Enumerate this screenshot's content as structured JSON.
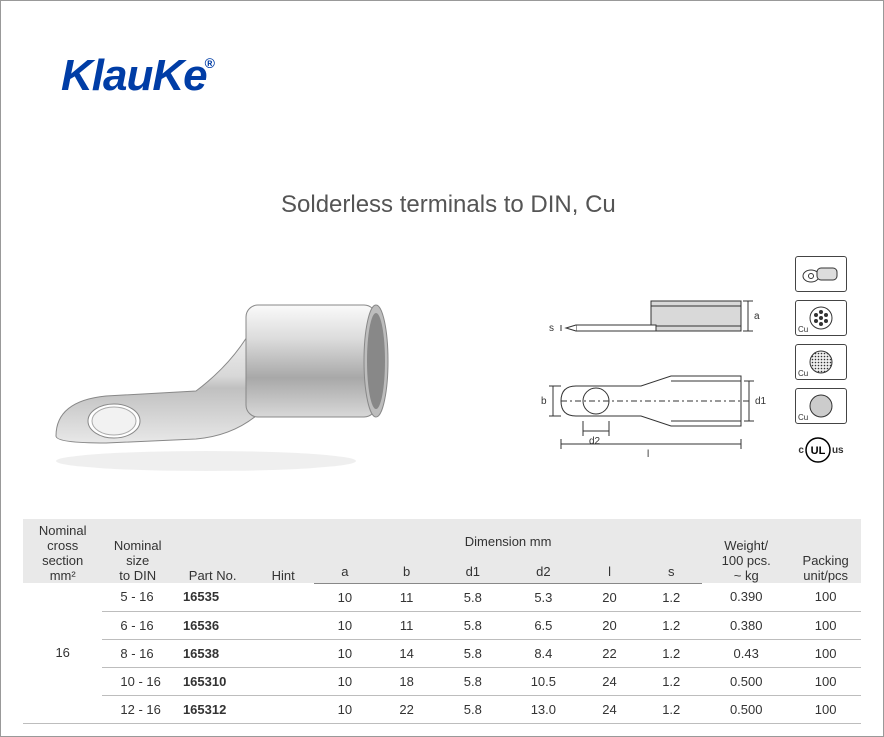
{
  "brand": {
    "name": "KlauKe",
    "registered": "®"
  },
  "title": "Solderless terminals to DIN, Cu",
  "icons": {
    "lug": "lug-icon",
    "cu1": "Cu",
    "cu2": "Cu",
    "cu3": "Cu",
    "ul_c": "c",
    "ul": "UL",
    "ul_us": "us"
  },
  "diagram_labels": {
    "a": "a",
    "s": "s",
    "b": "b",
    "d1": "d1",
    "d2": "d2",
    "l": "l"
  },
  "table": {
    "headers": {
      "cross": "Nominal\ncross section\nmm²",
      "size": "Nominal\nsize\nto DIN",
      "partno": "Part No.",
      "hint": "Hint",
      "dim_group": "Dimension mm",
      "a": "a",
      "b": "b",
      "d1": "d1",
      "d2": "d2",
      "l": "l",
      "s": "s",
      "weight": "Weight/\n100 pcs.\n~ kg",
      "packing": "Packing\nunit/pcs"
    },
    "cross_section": "16",
    "rows": [
      {
        "size": "5 - 16",
        "partno": "16535",
        "hint": "",
        "a": "10",
        "b": "11",
        "d1": "5.8",
        "d2": "5.3",
        "l": "20",
        "s": "1.2",
        "weight": "0.390",
        "packing": "100"
      },
      {
        "size": "6 - 16",
        "partno": "16536",
        "hint": "",
        "a": "10",
        "b": "11",
        "d1": "5.8",
        "d2": "6.5",
        "l": "20",
        "s": "1.2",
        "weight": "0.380",
        "packing": "100"
      },
      {
        "size": "8 - 16",
        "partno": "16538",
        "hint": "",
        "a": "10",
        "b": "14",
        "d1": "5.8",
        "d2": "8.4",
        "l": "22",
        "s": "1.2",
        "weight": "0.43",
        "packing": "100"
      },
      {
        "size": "10 - 16",
        "partno": "165310",
        "hint": "",
        "a": "10",
        "b": "18",
        "d1": "5.8",
        "d2": "10.5",
        "l": "24",
        "s": "1.2",
        "weight": "0.500",
        "packing": "100"
      },
      {
        "size": "12 - 16",
        "partno": "165312",
        "hint": "",
        "a": "10",
        "b": "22",
        "d1": "5.8",
        "d2": "13.0",
        "l": "24",
        "s": "1.2",
        "weight": "0.500",
        "packing": "100"
      }
    ]
  },
  "colors": {
    "brand_blue": "#003da6",
    "text": "#333333",
    "header_bg": "#e9e9e9",
    "border": "#888888",
    "row_border": "#bdbdbd"
  }
}
